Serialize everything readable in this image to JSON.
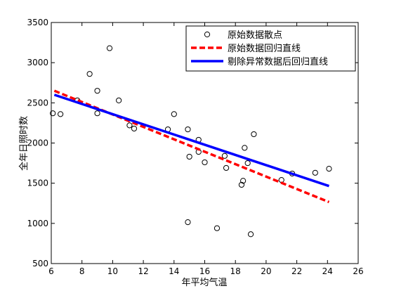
{
  "chart_data": {
    "type": "scatter",
    "title": "",
    "xlabel": "年平均气温",
    "ylabel": "全年日照时数",
    "xlim": [
      6,
      26
    ],
    "ylim": [
      500,
      3500
    ],
    "xticks": [
      6,
      8,
      10,
      12,
      14,
      16,
      18,
      20,
      22,
      24,
      26
    ],
    "yticks": [
      500,
      1000,
      1500,
      2000,
      2500,
      3000,
      3500
    ],
    "grid": false,
    "legend_position": "top-right",
    "series": [
      {
        "name": "原始数据散点",
        "kind": "scatter",
        "marker": "circle-open",
        "color": "#000000",
        "points": [
          [
            6.1,
            2370
          ],
          [
            6.6,
            2360
          ],
          [
            7.7,
            2530
          ],
          [
            8.5,
            2860
          ],
          [
            9.0,
            2650
          ],
          [
            9.0,
            2370
          ],
          [
            9.8,
            3180
          ],
          [
            10.4,
            2530
          ],
          [
            11.1,
            2220
          ],
          [
            11.4,
            2180
          ],
          [
            13.6,
            2170
          ],
          [
            14.0,
            2360
          ],
          [
            14.9,
            2170
          ],
          [
            15.0,
            1830
          ],
          [
            15.6,
            2040
          ],
          [
            15.6,
            1890
          ],
          [
            16.0,
            1760
          ],
          [
            17.3,
            1840
          ],
          [
            17.4,
            1690
          ],
          [
            18.4,
            1480
          ],
          [
            18.5,
            1530
          ],
          [
            18.6,
            1940
          ],
          [
            18.8,
            1750
          ],
          [
            19.2,
            2110
          ],
          [
            21.0,
            1540
          ],
          [
            21.7,
            1620
          ],
          [
            23.2,
            1630
          ],
          [
            24.1,
            1680
          ],
          [
            14.9,
            1015
          ],
          [
            16.8,
            940
          ],
          [
            19.0,
            865
          ]
        ]
      },
      {
        "name": "原始数据回归直线",
        "kind": "line",
        "style": "dashed",
        "color": "#ff0000",
        "points": [
          [
            6.2,
            2650
          ],
          [
            24.1,
            1265
          ]
        ]
      },
      {
        "name": "剔除异常数据后回归直线",
        "kind": "line",
        "style": "solid",
        "color": "#0000ff",
        "points": [
          [
            6.2,
            2600
          ],
          [
            24.1,
            1465
          ]
        ]
      }
    ]
  }
}
